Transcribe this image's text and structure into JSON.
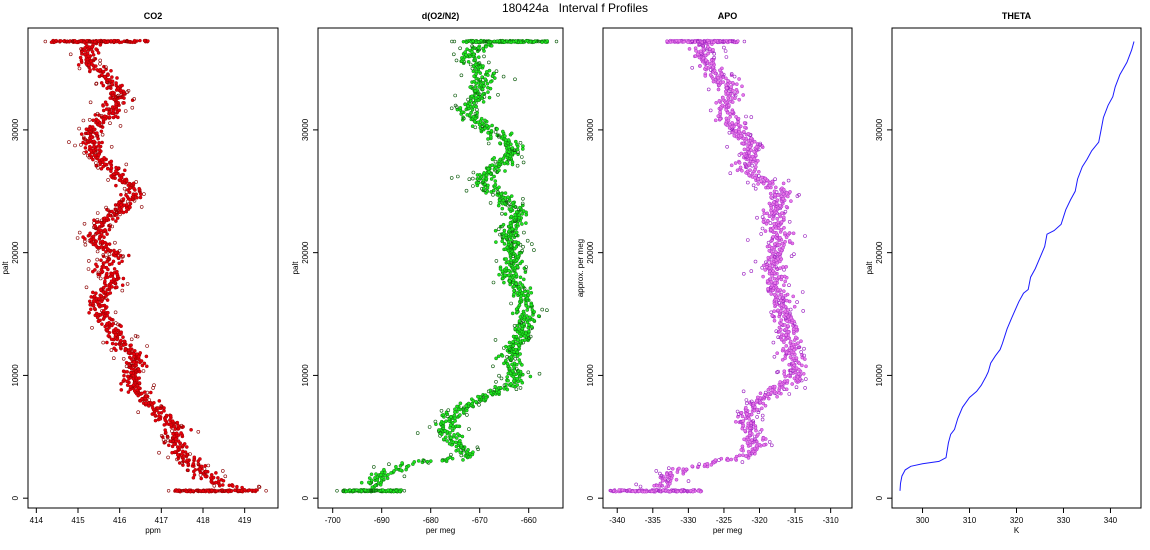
{
  "figure": {
    "title": "180424a   Interval f Profiles"
  },
  "chart_data": [
    {
      "type": "scatter",
      "title": "CO2",
      "xlabel": "ppm",
      "ylabel": "palt",
      "xlim": [
        413.8,
        419.8
      ],
      "ylim": [
        -800,
        38300
      ],
      "xticks": [
        414,
        415,
        416,
        417,
        418,
        419
      ],
      "yticks": [
        0,
        10000,
        20000,
        30000
      ],
      "color": "#e8000b",
      "dark_color": "#8b0000",
      "profile": [
        [
          418.6,
          600
        ],
        [
          418.8,
          900
        ],
        [
          418.3,
          1300
        ],
        [
          418.0,
          2000
        ],
        [
          417.7,
          2800
        ],
        [
          417.4,
          3800
        ],
        [
          417.3,
          4700
        ],
        [
          417.4,
          5600
        ],
        [
          417.1,
          6600
        ],
        [
          416.8,
          7600
        ],
        [
          416.4,
          8600
        ],
        [
          416.3,
          10000
        ],
        [
          416.4,
          11500
        ],
        [
          416.0,
          12600
        ],
        [
          415.8,
          13800
        ],
        [
          415.5,
          15000
        ],
        [
          415.5,
          16500
        ],
        [
          415.9,
          17500
        ],
        [
          415.6,
          18800
        ],
        [
          415.9,
          19800
        ],
        [
          415.4,
          21000
        ],
        [
          415.6,
          22500
        ],
        [
          416.0,
          23500
        ],
        [
          416.4,
          25000
        ],
        [
          415.8,
          26600
        ],
        [
          415.4,
          28000
        ],
        [
          415.3,
          29500
        ],
        [
          415.6,
          31000
        ],
        [
          416.0,
          32400
        ],
        [
          415.9,
          33500
        ],
        [
          415.5,
          35000
        ],
        [
          415.2,
          36000
        ],
        [
          415.5,
          37200
        ]
      ],
      "spread": 0.35,
      "top_band": {
        "palt": 37200,
        "x_range": [
          414.3,
          416.7
        ]
      },
      "bottom_band": {
        "palt": 600,
        "x_range": [
          417.3,
          419.3
        ]
      },
      "points_note": ""
    },
    {
      "type": "scatter",
      "title": "d(O2/N2)",
      "xlabel": "per meg",
      "ylabel": "palt",
      "xlim": [
        -703,
        -653
      ],
      "ylim": [
        -800,
        38300
      ],
      "xticks": [
        -700,
        -690,
        -680,
        -670,
        -660
      ],
      "yticks": [
        0,
        10000,
        20000,
        30000
      ],
      "color": "#1ee61e",
      "dark_color": "#0a5a0a",
      "profile": [
        [
          -692,
          600
        ],
        [
          -692,
          1200
        ],
        [
          -690,
          2000
        ],
        [
          -684,
          2800
        ],
        [
          -672,
          3400
        ],
        [
          -675,
          4500
        ],
        [
          -677,
          5600
        ],
        [
          -675,
          7000
        ],
        [
          -668,
          8500
        ],
        [
          -662,
          9600
        ],
        [
          -664,
          11500
        ],
        [
          -662,
          13000
        ],
        [
          -660,
          14700
        ],
        [
          -661,
          16300
        ],
        [
          -664,
          18200
        ],
        [
          -663,
          19800
        ],
        [
          -664,
          21800
        ],
        [
          -662,
          23000
        ],
        [
          -665,
          24400
        ],
        [
          -670,
          26000
        ],
        [
          -666,
          27200
        ],
        [
          -663,
          28500
        ],
        [
          -668,
          30000
        ],
        [
          -673,
          31500
        ],
        [
          -670,
          33000
        ],
        [
          -669,
          34500
        ],
        [
          -672,
          36000
        ],
        [
          -668,
          37200
        ]
      ],
      "spread": 3.0,
      "top_band": {
        "palt": 37200,
        "x_range": [
          -674,
          -656
        ]
      },
      "bottom_band": {
        "palt": 600,
        "x_range": [
          -698,
          -686
        ]
      },
      "points_note": ""
    },
    {
      "type": "scatter",
      "title": "APO",
      "xlabel": "per meg",
      "ylabel": "approx. per meg",
      "xlim": [
        -342,
        -307
      ],
      "ylim": [
        -800,
        38300
      ],
      "xticks": [
        -340,
        -335,
        -330,
        -325,
        -320,
        -315,
        -310
      ],
      "yticks": [
        0,
        10000,
        20000,
        30000
      ],
      "color": "#e878e8",
      "dark_color": "#9a20c0",
      "profile": [
        [
          -335,
          600
        ],
        [
          -333,
          1400
        ],
        [
          -332,
          2200
        ],
        [
          -322,
          3400
        ],
        [
          -320,
          4800
        ],
        [
          -322,
          6400
        ],
        [
          -320,
          8000
        ],
        [
          -315,
          9800
        ],
        [
          -315,
          11800
        ],
        [
          -316,
          13800
        ],
        [
          -317,
          15800
        ],
        [
          -318,
          17500
        ],
        [
          -318,
          19500
        ],
        [
          -317,
          21200
        ],
        [
          -318,
          23000
        ],
        [
          -317,
          25000
        ],
        [
          -322,
          26800
        ],
        [
          -321,
          28500
        ],
        [
          -323,
          30000
        ],
        [
          -325,
          31800
        ],
        [
          -324,
          33400
        ],
        [
          -327,
          35000
        ],
        [
          -328,
          36200
        ],
        [
          -327,
          37200
        ]
      ],
      "spread": 2.2,
      "top_band": {
        "palt": 37200,
        "x_range": [
          -333,
          -323
        ]
      },
      "bottom_band": {
        "palt": 600,
        "x_range": [
          -341,
          -328
        ]
      },
      "points_note": ""
    },
    {
      "type": "line",
      "title": "THETA",
      "xlabel": "K",
      "ylabel": "palt",
      "xlim": [
        293.5,
        346.5
      ],
      "ylim": [
        -800,
        38300
      ],
      "xticks": [
        300,
        310,
        320,
        330,
        340
      ],
      "yticks": [
        0,
        10000,
        20000,
        30000
      ],
      "color": "#1a1aff",
      "profile": [
        [
          295.2,
          600
        ],
        [
          295.3,
          1200
        ],
        [
          295.6,
          1800
        ],
        [
          296.3,
          2300
        ],
        [
          297.5,
          2600
        ],
        [
          300.0,
          2800
        ],
        [
          303.5,
          3000
        ],
        [
          305.0,
          3300
        ],
        [
          305.5,
          4500
        ],
        [
          306.0,
          5200
        ],
        [
          306.8,
          5600
        ],
        [
          307.5,
          6500
        ],
        [
          308.5,
          7400
        ],
        [
          310.0,
          8200
        ],
        [
          311.5,
          8700
        ],
        [
          312.5,
          9200
        ],
        [
          313.5,
          9900
        ],
        [
          314.0,
          10300
        ],
        [
          314.5,
          11000
        ],
        [
          315.5,
          11600
        ],
        [
          316.5,
          12100
        ],
        [
          317.0,
          12600
        ],
        [
          318.0,
          13800
        ],
        [
          319.0,
          14700
        ],
        [
          320.5,
          16000
        ],
        [
          321.5,
          16700
        ],
        [
          322.5,
          17000
        ],
        [
          323.0,
          18000
        ],
        [
          324.0,
          18700
        ],
        [
          325.0,
          19600
        ],
        [
          326.0,
          20500
        ],
        [
          326.5,
          21500
        ],
        [
          328.0,
          21800
        ],
        [
          329.5,
          22300
        ],
        [
          330.5,
          23500
        ],
        [
          331.5,
          24300
        ],
        [
          332.5,
          25000
        ],
        [
          333.0,
          26000
        ],
        [
          334.0,
          27000
        ],
        [
          335.0,
          27600
        ],
        [
          336.0,
          28300
        ],
        [
          337.5,
          29000
        ],
        [
          338.0,
          30000
        ],
        [
          338.5,
          31000
        ],
        [
          339.5,
          32000
        ],
        [
          340.5,
          32700
        ],
        [
          341.0,
          33500
        ],
        [
          342.0,
          34500
        ],
        [
          343.5,
          35500
        ],
        [
          344.5,
          36500
        ],
        [
          345.0,
          37200
        ]
      ],
      "points_note": ""
    }
  ]
}
